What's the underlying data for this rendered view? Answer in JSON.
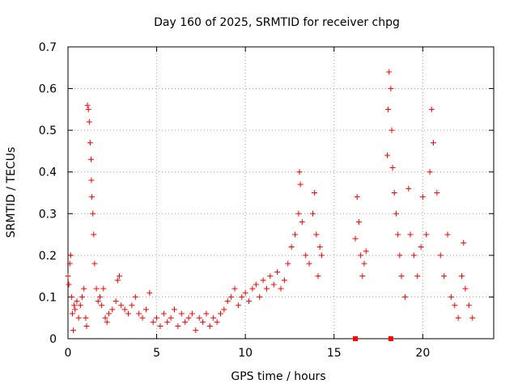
{
  "chart_data": {
    "type": "scatter",
    "title": "Day 160 of 2025, SRMTID for receiver chpg",
    "xlabel": "GPS time / hours",
    "ylabel": "SRMTID / TECUs",
    "xlim": [
      0,
      24
    ],
    "ylim": [
      0,
      0.7
    ],
    "xticks": [
      0,
      5,
      10,
      15,
      20
    ],
    "yticks": [
      0,
      0.1,
      0.2,
      0.3,
      0.4,
      0.5,
      0.6,
      0.7
    ],
    "xtick_labels": [
      "0",
      "5",
      "10",
      "15",
      "20"
    ],
    "ytick_labels": [
      "0",
      "0.1",
      "0.2",
      "0.3",
      "0.4",
      "0.5",
      "0.6",
      "0.7"
    ],
    "grid": true,
    "marker": "+",
    "series_color": "#ff0000",
    "square_markers_at_zero": [
      16.2,
      18.2
    ],
    "series": [
      {
        "name": "SRMTID",
        "points": [
          [
            0.0,
            0.15
          ],
          [
            0.05,
            0.13
          ],
          [
            0.1,
            0.18
          ],
          [
            0.15,
            0.2
          ],
          [
            0.2,
            0.1
          ],
          [
            0.25,
            0.06
          ],
          [
            0.3,
            0.02
          ],
          [
            0.35,
            0.08
          ],
          [
            0.4,
            0.07
          ],
          [
            0.5,
            0.09
          ],
          [
            0.6,
            0.05
          ],
          [
            0.7,
            0.08
          ],
          [
            0.8,
            0.1
          ],
          [
            0.9,
            0.12
          ],
          [
            1.0,
            0.05
          ],
          [
            1.05,
            0.03
          ],
          [
            1.1,
            0.56
          ],
          [
            1.15,
            0.55
          ],
          [
            1.2,
            0.52
          ],
          [
            1.25,
            0.47
          ],
          [
            1.3,
            0.43
          ],
          [
            1.32,
            0.38
          ],
          [
            1.35,
            0.34
          ],
          [
            1.4,
            0.3
          ],
          [
            1.45,
            0.25
          ],
          [
            1.5,
            0.18
          ],
          [
            1.6,
            0.12
          ],
          [
            1.7,
            0.09
          ],
          [
            1.8,
            0.1
          ],
          [
            1.9,
            0.08
          ],
          [
            2.0,
            0.12
          ],
          [
            2.1,
            0.05
          ],
          [
            2.2,
            0.04
          ],
          [
            2.3,
            0.06
          ],
          [
            2.5,
            0.07
          ],
          [
            2.7,
            0.09
          ],
          [
            2.8,
            0.14
          ],
          [
            2.9,
            0.15
          ],
          [
            3.0,
            0.08
          ],
          [
            3.2,
            0.07
          ],
          [
            3.4,
            0.06
          ],
          [
            3.6,
            0.08
          ],
          [
            3.8,
            0.1
          ],
          [
            4.0,
            0.06
          ],
          [
            4.2,
            0.05
          ],
          [
            4.4,
            0.07
          ],
          [
            4.6,
            0.11
          ],
          [
            4.8,
            0.04
          ],
          [
            5.0,
            0.05
          ],
          [
            5.2,
            0.03
          ],
          [
            5.4,
            0.06
          ],
          [
            5.6,
            0.04
          ],
          [
            5.8,
            0.05
          ],
          [
            6.0,
            0.07
          ],
          [
            6.2,
            0.03
          ],
          [
            6.4,
            0.06
          ],
          [
            6.6,
            0.04
          ],
          [
            6.8,
            0.05
          ],
          [
            7.0,
            0.06
          ],
          [
            7.2,
            0.02
          ],
          [
            7.4,
            0.05
          ],
          [
            7.6,
            0.04
          ],
          [
            7.8,
            0.06
          ],
          [
            8.0,
            0.03
          ],
          [
            8.2,
            0.05
          ],
          [
            8.4,
            0.04
          ],
          [
            8.6,
            0.06
          ],
          [
            8.8,
            0.07
          ],
          [
            9.0,
            0.09
          ],
          [
            9.2,
            0.1
          ],
          [
            9.4,
            0.12
          ],
          [
            9.6,
            0.08
          ],
          [
            9.8,
            0.1
          ],
          [
            10.0,
            0.11
          ],
          [
            10.2,
            0.09
          ],
          [
            10.4,
            0.12
          ],
          [
            10.6,
            0.13
          ],
          [
            10.8,
            0.1
          ],
          [
            11.0,
            0.14
          ],
          [
            11.2,
            0.12
          ],
          [
            11.4,
            0.15
          ],
          [
            11.6,
            0.13
          ],
          [
            11.8,
            0.16
          ],
          [
            12.0,
            0.12
          ],
          [
            12.2,
            0.14
          ],
          [
            12.4,
            0.18
          ],
          [
            12.6,
            0.22
          ],
          [
            12.8,
            0.25
          ],
          [
            13.0,
            0.3
          ],
          [
            13.05,
            0.4
          ],
          [
            13.1,
            0.37
          ],
          [
            13.2,
            0.28
          ],
          [
            13.4,
            0.2
          ],
          [
            13.6,
            0.18
          ],
          [
            13.8,
            0.3
          ],
          [
            13.9,
            0.35
          ],
          [
            14.0,
            0.25
          ],
          [
            14.1,
            0.15
          ],
          [
            14.2,
            0.22
          ],
          [
            14.3,
            0.2
          ],
          [
            16.2,
            0.24
          ],
          [
            16.3,
            0.34
          ],
          [
            16.4,
            0.28
          ],
          [
            16.5,
            0.2
          ],
          [
            16.6,
            0.15
          ],
          [
            16.7,
            0.18
          ],
          [
            16.8,
            0.21
          ],
          [
            18.0,
            0.44
          ],
          [
            18.05,
            0.55
          ],
          [
            18.1,
            0.64
          ],
          [
            18.2,
            0.6
          ],
          [
            18.25,
            0.5
          ],
          [
            18.3,
            0.41
          ],
          [
            18.4,
            0.35
          ],
          [
            18.5,
            0.3
          ],
          [
            18.6,
            0.25
          ],
          [
            18.7,
            0.2
          ],
          [
            18.8,
            0.15
          ],
          [
            19.0,
            0.1
          ],
          [
            19.2,
            0.36
          ],
          [
            19.3,
            0.25
          ],
          [
            19.5,
            0.2
          ],
          [
            19.7,
            0.15
          ],
          [
            19.9,
            0.22
          ],
          [
            20.0,
            0.34
          ],
          [
            20.2,
            0.25
          ],
          [
            20.4,
            0.4
          ],
          [
            20.5,
            0.55
          ],
          [
            20.6,
            0.47
          ],
          [
            20.8,
            0.35
          ],
          [
            21.0,
            0.2
          ],
          [
            21.2,
            0.15
          ],
          [
            21.4,
            0.25
          ],
          [
            21.6,
            0.1
          ],
          [
            21.8,
            0.08
          ],
          [
            22.0,
            0.05
          ],
          [
            22.2,
            0.15
          ],
          [
            22.3,
            0.23
          ],
          [
            22.4,
            0.12
          ],
          [
            22.6,
            0.08
          ],
          [
            22.8,
            0.05
          ]
        ]
      }
    ]
  }
}
